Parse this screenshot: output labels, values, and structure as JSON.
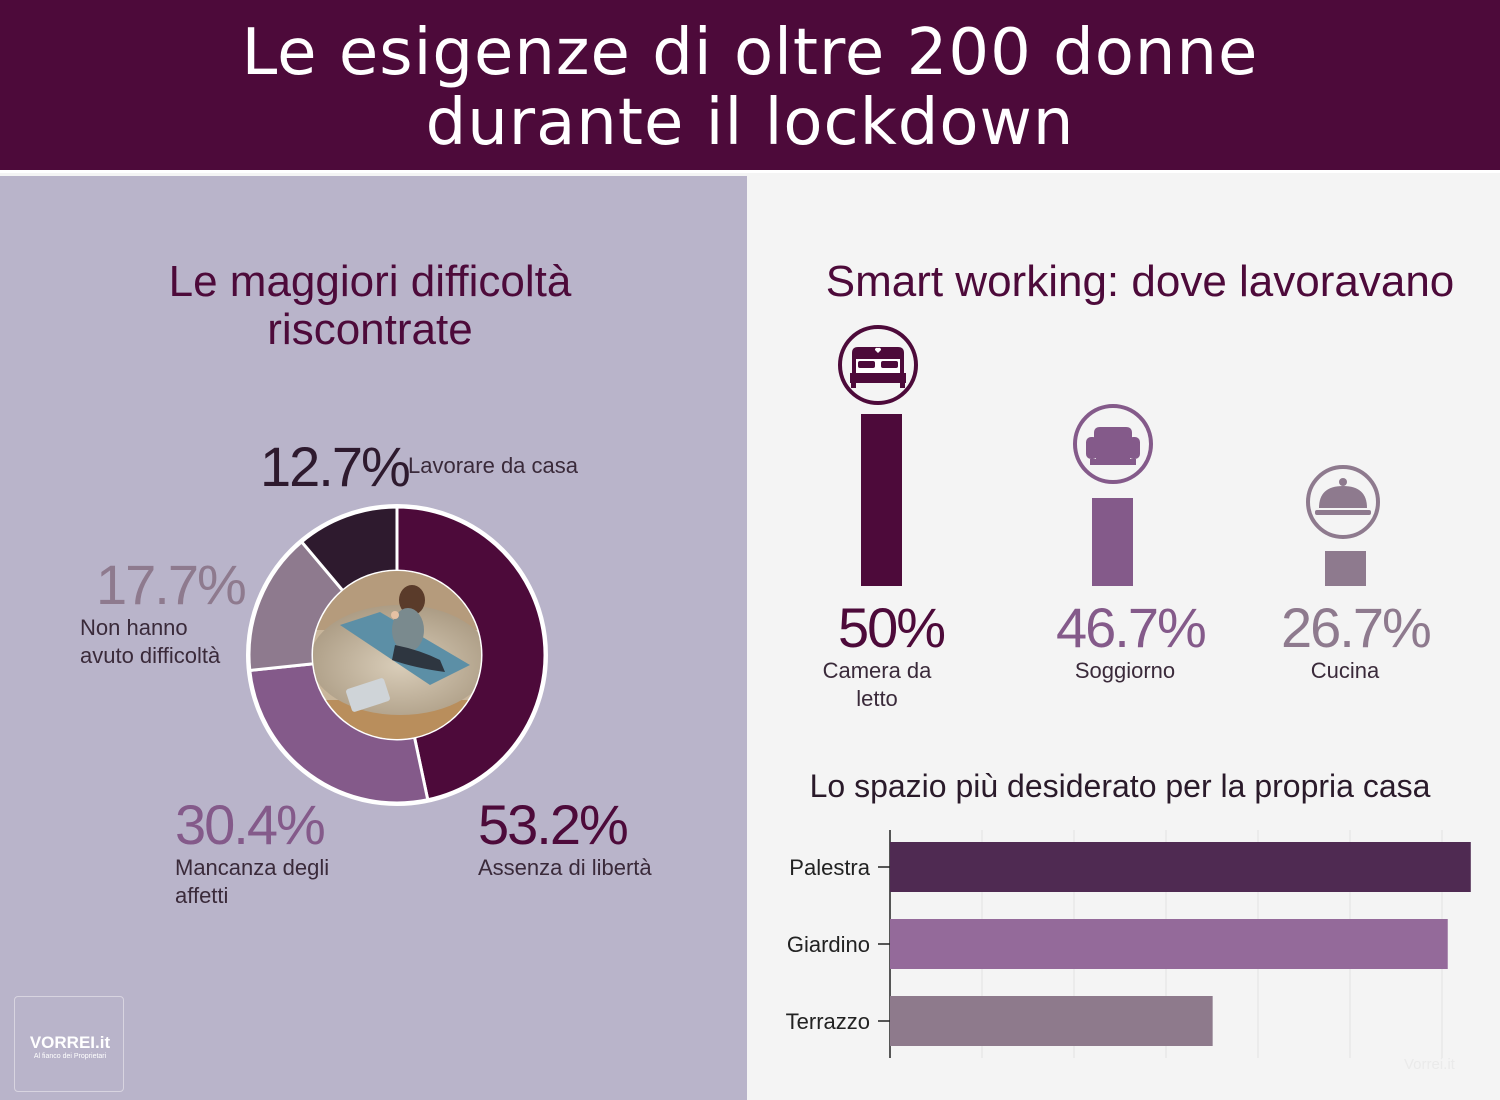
{
  "header": {
    "title_line1": "Le esigenze di oltre 200 donne",
    "title_line2": "durante il lockdown"
  },
  "colors": {
    "header_bg": "#4d0a3a",
    "left_bg": "#b9b4ca",
    "right_bg": "#f4f4f4",
    "dark_purple": "#4d0a3a",
    "mid_purple": "#845a8a",
    "mauve": "#8e7a8e",
    "very_dark": "#2e1a2e"
  },
  "donut": {
    "title_line1": "Le maggiori difficoltà",
    "title_line2": "riscontrate",
    "segments": [
      {
        "pct": "53.2%",
        "label": "Assenza di libertà",
        "value": 53.2,
        "color": "#4d0a3a"
      },
      {
        "pct": "30.4%",
        "label_line1": "Mancanza degli",
        "label_line2": "affetti",
        "value": 30.4,
        "color": "#845a8a"
      },
      {
        "pct": "17.7%",
        "label_line1": "Non hanno",
        "label_line2": "avuto difficoltà",
        "value": 17.7,
        "color": "#8e7a8e"
      },
      {
        "pct": "12.7%",
        "label": "Lavorare da casa",
        "value": 12.7,
        "color": "#2e1a2e"
      }
    ],
    "photo": "woman-on-yoga-mat-with-laptop"
  },
  "smart_working": {
    "title": "Smart working: dove lavoravano",
    "items": [
      {
        "pct": "50%",
        "label_line1": "Camera da",
        "label_line2": "letto",
        "value": 50,
        "icon": "bed-icon",
        "color": "#4d0a3a"
      },
      {
        "pct": "46.7%",
        "label": "Soggiorno",
        "value": 46.7,
        "icon": "armchair-icon",
        "color": "#845a8a"
      },
      {
        "pct": "26.7%",
        "label": "Cucina",
        "value": 26.7,
        "icon": "cloche-icon",
        "color": "#8e7a8e"
      }
    ]
  },
  "chart_data": {
    "type": "bar",
    "orientation": "horizontal",
    "title": "Lo spazio più desiderato per la propria casa",
    "categories": [
      "Palestra",
      "Giardino",
      "Terrazzo"
    ],
    "values": [
      63,
      60.5,
      35
    ],
    "colors": [
      "#4f2a52",
      "#946a9a",
      "#8e7a8c"
    ],
    "xlim": [
      0,
      64
    ],
    "grid": true
  },
  "logo": {
    "name": "VORREI.it",
    "tagline": "Al fianco dei Proprietari"
  },
  "watermark": "Vorrei.it"
}
